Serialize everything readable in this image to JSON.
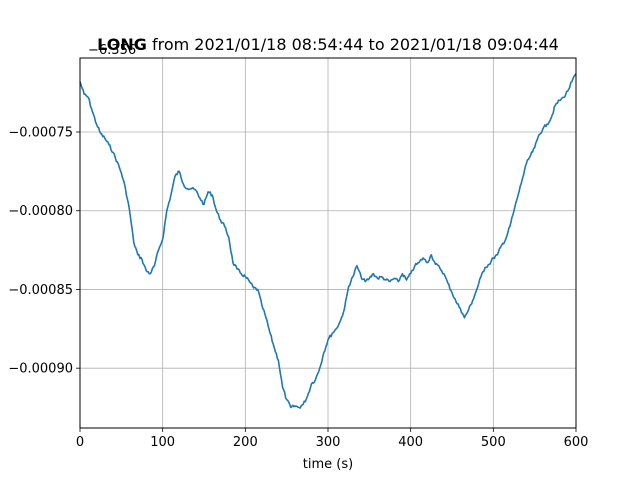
{
  "chart_data": {
    "type": "line",
    "title_bold": "LONG",
    "title_rest": " from 2021/01/18 08:54:44 to 2021/01/18 09:04:44",
    "offset_label": "−6.356",
    "xlabel": "time (s)",
    "ylabel": "",
    "xlim": [
      0,
      600
    ],
    "ylim": [
      -0.000938,
      -0.000703
    ],
    "grid": true,
    "x_ticks": [
      0,
      100,
      200,
      300,
      400,
      500,
      600
    ],
    "x_tick_labels": [
      "0",
      "100",
      "200",
      "300",
      "400",
      "500",
      "600"
    ],
    "y_ticks": [
      -0.00075,
      -0.0008,
      -0.00085,
      -0.0009
    ],
    "y_tick_labels": [
      "−0.00075",
      "−0.00080",
      "−0.00085",
      "−0.00090"
    ],
    "series": [
      {
        "color": "#1f77b4",
        "x": [
          0,
          5,
          10,
          15,
          20,
          25,
          30,
          35,
          40,
          45,
          50,
          55,
          60,
          65,
          70,
          75,
          80,
          85,
          90,
          95,
          100,
          105,
          110,
          115,
          120,
          125,
          130,
          135,
          140,
          145,
          150,
          155,
          160,
          165,
          170,
          175,
          180,
          185,
          190,
          195,
          200,
          205,
          210,
          215,
          220,
          225,
          230,
          235,
          240,
          245,
          250,
          255,
          260,
          265,
          270,
          275,
          280,
          285,
          290,
          295,
          300,
          305,
          310,
          315,
          320,
          325,
          330,
          335,
          340,
          345,
          350,
          355,
          360,
          365,
          370,
          375,
          380,
          385,
          390,
          395,
          400,
          405,
          410,
          415,
          420,
          425,
          430,
          435,
          440,
          445,
          450,
          455,
          460,
          465,
          470,
          475,
          480,
          485,
          490,
          495,
          500,
          505,
          510,
          515,
          520,
          525,
          530,
          535,
          540,
          545,
          550,
          555,
          560,
          565,
          570,
          575,
          580,
          585,
          590,
          595,
          600
        ],
        "y": [
          -0.000718,
          -0.000726,
          -0.000728,
          -0.000737,
          -0.000745,
          -0.000751,
          -0.000754,
          -0.000758,
          -0.000763,
          -0.000769,
          -0.000776,
          -0.000786,
          -0.0008,
          -0.00082,
          -0.000828,
          -0.000831,
          -0.000838,
          -0.00084,
          -0.000835,
          -0.000825,
          -0.000818,
          -0.0008,
          -0.00079,
          -0.000778,
          -0.000775,
          -0.000783,
          -0.000786,
          -0.000786,
          -0.000787,
          -0.000792,
          -0.000796,
          -0.000788,
          -0.00079,
          -0.0008,
          -0.000806,
          -0.00081,
          -0.000817,
          -0.000833,
          -0.000837,
          -0.00084,
          -0.000842,
          -0.000845,
          -0.000849,
          -0.00085,
          -0.00086,
          -0.000868,
          -0.000878,
          -0.000887,
          -0.000895,
          -0.000912,
          -0.00092,
          -0.000925,
          -0.000924,
          -0.000925,
          -0.000923,
          -0.000918,
          -0.00091,
          -0.000907,
          -0.0009,
          -0.00089,
          -0.000882,
          -0.000878,
          -0.000875,
          -0.00087,
          -0.000862,
          -0.000848,
          -0.000842,
          -0.000835,
          -0.000842,
          -0.000845,
          -0.000843,
          -0.00084,
          -0.000843,
          -0.000842,
          -0.000844,
          -0.000845,
          -0.000843,
          -0.000845,
          -0.00084,
          -0.000844,
          -0.00084,
          -0.000835,
          -0.000833,
          -0.00083,
          -0.000833,
          -0.000828,
          -0.000834,
          -0.000836,
          -0.00084,
          -0.000846,
          -0.000852,
          -0.000858,
          -0.000862,
          -0.000868,
          -0.000863,
          -0.000857,
          -0.00085,
          -0.000842,
          -0.000836,
          -0.000834,
          -0.00083,
          -0.000828,
          -0.000822,
          -0.000818,
          -0.00081,
          -0.0008,
          -0.00079,
          -0.00078,
          -0.00077,
          -0.000765,
          -0.00076,
          -0.000752,
          -0.000748,
          -0.000745,
          -0.000741,
          -0.000733,
          -0.00073,
          -0.000728,
          -0.000724,
          -0.000718,
          -0.000713
        ]
      }
    ]
  }
}
